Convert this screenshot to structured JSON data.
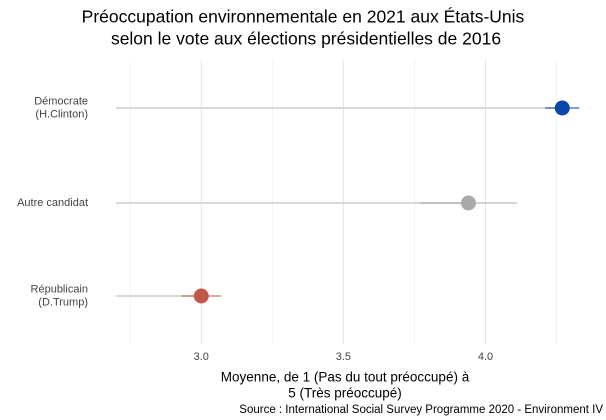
{
  "chart_data": {
    "type": "dot",
    "title": [
      "Préoccupation environnementale en 2021 aux États-Unis",
      "selon le vote aux élections présidentielles de 2016"
    ],
    "categories": [
      [
        "Démocrate",
        "(H.Clinton)"
      ],
      [
        "Autre candidat"
      ],
      [
        "Républicain",
        "(D.Trump)"
      ]
    ],
    "values": [
      4.27,
      3.94,
      3.0
    ],
    "errors": [
      0.06,
      0.17,
      0.07
    ],
    "colors": [
      "#0a47a8",
      "#aaaaaa",
      "#c0584a"
    ],
    "xlim": [
      2.7,
      4.35
    ],
    "xticks": [
      {
        "value": 3.0,
        "label": "3.0"
      },
      {
        "value": 3.5,
        "label": "3.5"
      },
      {
        "value": 4.0,
        "label": "4.0"
      }
    ],
    "xminor": [
      2.75,
      3.25,
      3.75,
      4.25
    ],
    "xlabel": [
      "Moyenne, de 1 (Pas du tout préoccupé) à",
      "5 (Très préoccupé)"
    ],
    "caption": "Source : International Social Survey Programme 2020 - Environment IV",
    "grid": true
  }
}
